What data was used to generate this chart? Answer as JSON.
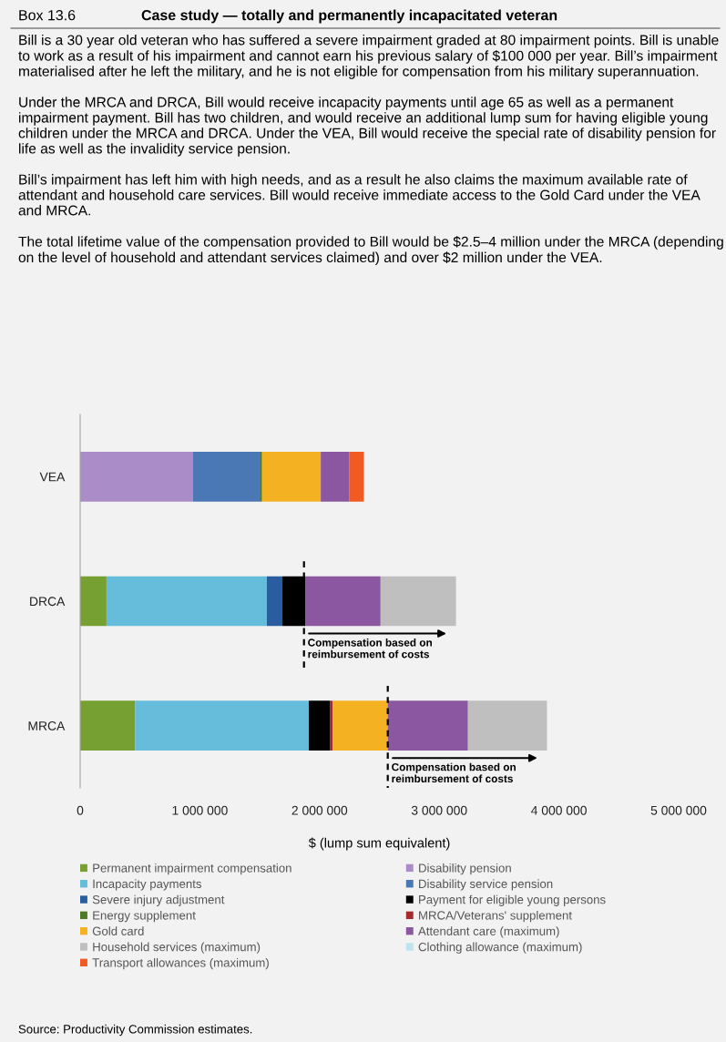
{
  "chart_data": {
    "type": "bar",
    "orientation": "horizontal",
    "stacked": true,
    "subtitle": "Box 13.6",
    "title": "Case study — totally and permanently incapacitated veteran",
    "xlabel": "$ (lump sum equivalent)",
    "categories": [
      "VEA",
      "DRCA",
      "MRCA"
    ],
    "xlim": [
      0,
      5000000
    ],
    "xticks": [
      0,
      {
        "value": 1000000,
        "label": "1 000 000"
      },
      {
        "value": 2000000,
        "label": "2 000 000"
      },
      {
        "value": 3000000,
        "label": "3 000 000"
      },
      {
        "value": 4000000,
        "label": "4 000 000"
      },
      {
        "value": 5000000,
        "label": "5 000 000"
      }
    ],
    "tick_labels": "x",
    "grid": false,
    "legend": "bottom",
    "series": [
      {
        "name": "Permanent impairment compensation",
        "color": "#77a033",
        "values": [
          null,
          220000,
          460000
        ]
      },
      {
        "name": "Disability pension",
        "color": "#a98cc8",
        "values": [
          940000,
          null,
          null
        ]
      },
      {
        "name": "Incapacity payments",
        "color": "#65bcdb",
        "values": [
          null,
          1340000,
          1450000
        ]
      },
      {
        "name": "Disability service pension",
        "color": "#4a78b4",
        "values": [
          560000,
          null,
          null
        ]
      },
      {
        "name": "Severe injury adjustment",
        "color": "#2a5d9f",
        "values": [
          null,
          130000,
          null
        ]
      },
      {
        "name": "Payment for eligible young persons",
        "color": "#000000",
        "values": [
          null,
          190000,
          180000
        ]
      },
      {
        "name": "Energy supplement",
        "color": "#4e7a28",
        "values": [
          20000,
          null,
          null
        ]
      },
      {
        "name": "MRCA/Veterans' supplement",
        "color": "#a52a2a",
        "values": [
          null,
          null,
          20000
        ]
      },
      {
        "name": "Gold card",
        "color": "#f4b223",
        "values": [
          490000,
          null,
          460000
        ]
      },
      {
        "name": "Attendant care (maximum)",
        "color": "#8a57a0",
        "values": [
          240000,
          630000,
          670000
        ]
      },
      {
        "name": "Household services (maximum)",
        "color": "#bfbfbf",
        "values": [
          null,
          630000,
          660000
        ]
      },
      {
        "name": "Clothing allowance (maximum)",
        "color": "#bde3f0",
        "values": [
          null,
          null,
          null
        ]
      },
      {
        "name": "Transport allowances (maximum)",
        "color": "#f15a22",
        "values": [
          120000,
          null,
          null
        ]
      }
    ],
    "annotations": [
      "Bill is a 30 year old veteran who has suffered a severe impairment graded at 80 impairment points. Bill is unable to work as a result of his impairment and cannot earn his previous salary of $100 000 per year. Bill’s impairment materialised after he left the military, and he is not eligible for compensation from his military superannuation.",
      "Under the MRCA and DRCA, Bill would receive incapacity payments until age 65 as well as a permanent impairment payment. Bill has two children, and would receive an additional lump sum for having eligible young children under the MRCA and DRCA. Under the VEA, Bill would receive the special rate of disability pension for life as well as the invalidity service pension.",
      "Bill’s impairment has left him with high needs, and as a result he also claims the maximum available rate of attendant and household care services. Bill would receive immediate access to the Gold Card under the VEA and MRCA.",
      "The total lifetime value of the compensation provided to Bill would be $2.5–4 million under the MRCA (depending on the level of household and attendant services claimed) and over $2 million under the VEA.",
      "Source: Productivity Commission estimates."
    ],
    "ref_lines": [
      {
        "axis": "x",
        "value": 1870000,
        "label": "Compensation based on\nreimbursement of costs",
        "line_style": "dashed",
        "color": "#000000"
      },
      {
        "axis": "x",
        "value": 2570000,
        "label": "Compensation based on\nreimbursement of costs",
        "line_style": "dashed",
        "color": "#000000"
      }
    ]
  }
}
